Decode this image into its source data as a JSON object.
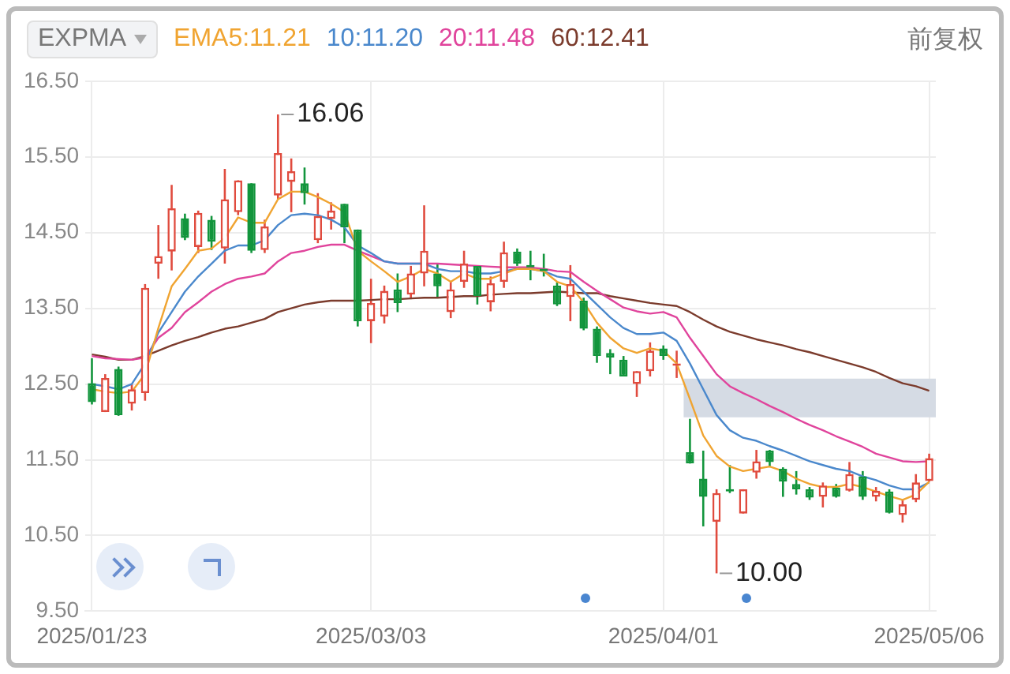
{
  "chart_data": {
    "type": "candlestick",
    "legend_title": "EXPMA",
    "legend": "top",
    "grid": true,
    "marker": "none",
    "annotations": [
      "16.06",
      "10.00",
      "前复权"
    ],
    "categories": [
      "2025/01/23",
      null,
      null,
      null,
      null,
      null,
      null,
      null,
      null,
      null,
      null,
      null,
      null,
      null,
      null,
      null,
      null,
      null,
      null,
      null,
      null,
      "2025/03/03",
      null,
      null,
      null,
      null,
      null,
      null,
      null,
      null,
      null,
      null,
      null,
      null,
      null,
      null,
      null,
      null,
      null,
      null,
      null,
      null,
      null,
      "2025/04/01",
      null,
      null,
      null,
      null,
      null,
      null,
      null,
      null,
      null,
      null,
      null,
      null,
      null,
      null,
      null,
      null,
      null,
      null,
      null,
      "2025/05/06"
    ],
    "ylim": [
      9.5,
      16.5
    ],
    "yticks": [
      {
        "value": 9.5,
        "label": "9.50"
      },
      {
        "value": 10.5,
        "label": "10.50"
      },
      {
        "value": 11.5,
        "label": "11.50"
      },
      {
        "value": 12.5,
        "label": "12.50"
      },
      {
        "value": 13.5,
        "label": "13.50"
      },
      {
        "value": 14.5,
        "label": "14.50"
      },
      {
        "value": 15.5,
        "label": "15.50"
      },
      {
        "value": 16.5,
        "label": "16.50"
      }
    ],
    "bands": [
      {
        "axis": "y",
        "from": 12.06,
        "to": 12.57,
        "color": "#d5dbe4"
      }
    ],
    "ohlc": [
      [
        12.51,
        12.84,
        12.23,
        12.26
      ],
      [
        12.13,
        12.63,
        12.13,
        12.58
      ],
      [
        12.7,
        12.73,
        12.08,
        12.09
      ],
      [
        12.24,
        12.5,
        12.15,
        12.43
      ],
      [
        12.38,
        13.82,
        12.28,
        13.77
      ],
      [
        14.09,
        14.6,
        13.89,
        14.19
      ],
      [
        14.25,
        15.13,
        14.0,
        14.82
      ],
      [
        14.69,
        14.75,
        14.4,
        14.43
      ],
      [
        14.31,
        14.79,
        14.23,
        14.76
      ],
      [
        14.67,
        14.72,
        14.27,
        14.38
      ],
      [
        14.29,
        15.34,
        14.09,
        14.94
      ],
      [
        14.77,
        15.19,
        14.73,
        15.19
      ],
      [
        15.15,
        15.15,
        14.23,
        14.26
      ],
      [
        14.27,
        14.67,
        14.23,
        14.58
      ],
      [
        14.99,
        16.06,
        14.94,
        15.55
      ],
      [
        15.17,
        15.48,
        14.77,
        15.31
      ],
      [
        15.15,
        15.36,
        14.87,
        15.02
      ],
      [
        14.4,
        15.02,
        14.36,
        14.72
      ],
      [
        14.68,
        14.9,
        14.54,
        14.79
      ],
      [
        14.88,
        14.88,
        14.36,
        14.57
      ],
      [
        14.54,
        14.54,
        13.26,
        13.33
      ],
      [
        13.33,
        13.89,
        13.04,
        13.57
      ],
      [
        13.39,
        13.8,
        13.3,
        13.73
      ],
      [
        13.75,
        13.96,
        13.45,
        13.57
      ],
      [
        13.68,
        14.06,
        13.62,
        13.96
      ],
      [
        13.96,
        14.86,
        13.79,
        14.26
      ],
      [
        13.96,
        14.09,
        13.65,
        13.79
      ],
      [
        13.45,
        13.85,
        13.37,
        13.75
      ],
      [
        13.85,
        14.26,
        13.77,
        14.09
      ],
      [
        14.06,
        14.06,
        13.55,
        13.66
      ],
      [
        13.58,
        13.92,
        13.46,
        13.83
      ],
      [
        13.85,
        14.38,
        13.77,
        14.24
      ],
      [
        14.25,
        14.29,
        14.06,
        14.09
      ],
      [
        14.07,
        14.26,
        13.87,
        14.04
      ],
      [
        14.02,
        14.22,
        13.92,
        13.99
      ],
      [
        13.8,
        13.84,
        13.53,
        13.55
      ],
      [
        13.65,
        14.07,
        13.33,
        13.82
      ],
      [
        13.6,
        13.64,
        13.21,
        13.23
      ],
      [
        13.23,
        13.26,
        12.78,
        12.87
      ],
      [
        12.91,
        12.96,
        12.63,
        12.85
      ],
      [
        12.82,
        12.87,
        12.6,
        12.6
      ],
      [
        12.5,
        12.67,
        12.33,
        12.67
      ],
      [
        12.67,
        13.05,
        12.6,
        12.94
      ],
      [
        12.97,
        13.01,
        12.82,
        12.87
      ],
      [
        12.74,
        12.94,
        12.58,
        12.76
      ],
      [
        11.6,
        12.04,
        11.45,
        11.45
      ],
      [
        11.25,
        11.62,
        10.62,
        11.01
      ],
      [
        10.68,
        11.11,
        10.0,
        11.06
      ],
      [
        11.11,
        11.43,
        11.06,
        11.08
      ],
      [
        10.79,
        11.11,
        10.79,
        11.11
      ],
      [
        11.33,
        11.63,
        11.25,
        11.48
      ],
      [
        11.62,
        11.63,
        11.4,
        11.47
      ],
      [
        11.38,
        11.4,
        11.01,
        11.21
      ],
      [
        11.18,
        11.35,
        11.04,
        11.11
      ],
      [
        11.11,
        11.14,
        10.97,
        11.0
      ],
      [
        11.01,
        11.2,
        10.87,
        11.16
      ],
      [
        11.13,
        11.18,
        11.0,
        11.01
      ],
      [
        11.09,
        11.47,
        11.08,
        11.31
      ],
      [
        11.28,
        11.35,
        10.97,
        11.01
      ],
      [
        11.01,
        11.14,
        10.95,
        11.09
      ],
      [
        11.08,
        11.11,
        10.79,
        10.8
      ],
      [
        10.77,
        10.97,
        10.67,
        10.91
      ],
      [
        10.97,
        11.31,
        10.94,
        11.2
      ],
      [
        11.22,
        11.58,
        11.21,
        11.52
      ]
    ],
    "series": [
      {
        "name": "EMA5:11.21",
        "type": "line",
        "color": "#f0a431",
        "values": [
          12.43,
          12.4,
          12.38,
          12.4,
          12.63,
          13.24,
          13.79,
          14.02,
          14.26,
          14.29,
          14.43,
          14.7,
          14.63,
          14.63,
          14.94,
          15.04,
          15.04,
          14.97,
          14.88,
          14.77,
          14.26,
          14.12,
          13.99,
          13.85,
          13.92,
          14.02,
          13.96,
          13.85,
          13.96,
          13.89,
          13.89,
          13.96,
          14.02,
          14.02,
          13.99,
          13.85,
          13.79,
          13.58,
          13.31,
          13.11,
          12.97,
          12.91,
          12.97,
          12.94,
          12.77,
          12.3,
          11.82,
          11.55,
          11.41,
          11.35,
          11.38,
          11.41,
          11.35,
          11.25,
          11.18,
          11.14,
          11.14,
          11.18,
          11.14,
          11.08,
          11.02,
          10.97,
          11.04,
          11.21
        ]
      },
      {
        "name": "10:11.20",
        "type": "line",
        "color": "#4a88cc",
        "values": [
          12.5,
          12.47,
          12.43,
          12.5,
          12.77,
          13.18,
          13.45,
          13.72,
          13.92,
          14.09,
          14.26,
          14.33,
          14.33,
          14.4,
          14.6,
          14.73,
          14.75,
          14.73,
          14.67,
          14.57,
          14.33,
          14.23,
          14.12,
          14.09,
          14.09,
          14.09,
          14.02,
          13.99,
          13.99,
          13.96,
          13.96,
          13.99,
          14.02,
          14.02,
          13.99,
          13.92,
          13.89,
          13.72,
          13.55,
          13.38,
          13.24,
          13.16,
          13.16,
          13.18,
          13.07,
          12.77,
          12.43,
          12.09,
          11.89,
          11.79,
          11.75,
          11.68,
          11.62,
          11.55,
          11.48,
          11.43,
          11.38,
          11.35,
          11.28,
          11.23,
          11.16,
          11.11,
          11.11,
          11.2
        ]
      },
      {
        "name": "20:11.48",
        "type": "line",
        "color": "#e0449c",
        "values": [
          12.87,
          12.84,
          12.83,
          12.82,
          12.85,
          13.11,
          13.24,
          13.45,
          13.58,
          13.72,
          13.82,
          13.89,
          13.92,
          13.96,
          14.12,
          14.23,
          14.26,
          14.31,
          14.34,
          14.34,
          14.26,
          14.19,
          14.12,
          14.09,
          14.09,
          14.09,
          14.09,
          14.08,
          14.07,
          14.06,
          14.05,
          14.04,
          14.04,
          14.04,
          14.02,
          13.99,
          13.98,
          13.85,
          13.73,
          13.62,
          13.51,
          13.46,
          13.43,
          13.45,
          13.38,
          13.11,
          12.87,
          12.63,
          12.47,
          12.38,
          12.3,
          12.21,
          12.13,
          12.04,
          11.96,
          11.89,
          11.81,
          11.74,
          11.67,
          11.58,
          11.53,
          11.48,
          11.47,
          11.48
        ]
      },
      {
        "name": "60:12.41",
        "type": "line",
        "color": "#7b3b2c",
        "values": [
          12.89,
          12.86,
          12.82,
          12.82,
          12.87,
          12.94,
          13.01,
          13.07,
          13.12,
          13.18,
          13.23,
          13.26,
          13.31,
          13.36,
          13.45,
          13.5,
          13.55,
          13.58,
          13.6,
          13.6,
          13.6,
          13.61,
          13.62,
          13.62,
          13.63,
          13.64,
          13.64,
          13.65,
          13.66,
          13.66,
          13.68,
          13.69,
          13.7,
          13.7,
          13.71,
          13.72,
          13.71,
          13.7,
          13.7,
          13.66,
          13.63,
          13.6,
          13.57,
          13.55,
          13.53,
          13.45,
          13.35,
          13.26,
          13.19,
          13.14,
          13.09,
          13.05,
          13.01,
          12.96,
          12.92,
          12.87,
          12.82,
          12.77,
          12.72,
          12.66,
          12.58,
          12.51,
          12.47,
          12.41
        ]
      }
    ]
  }
}
